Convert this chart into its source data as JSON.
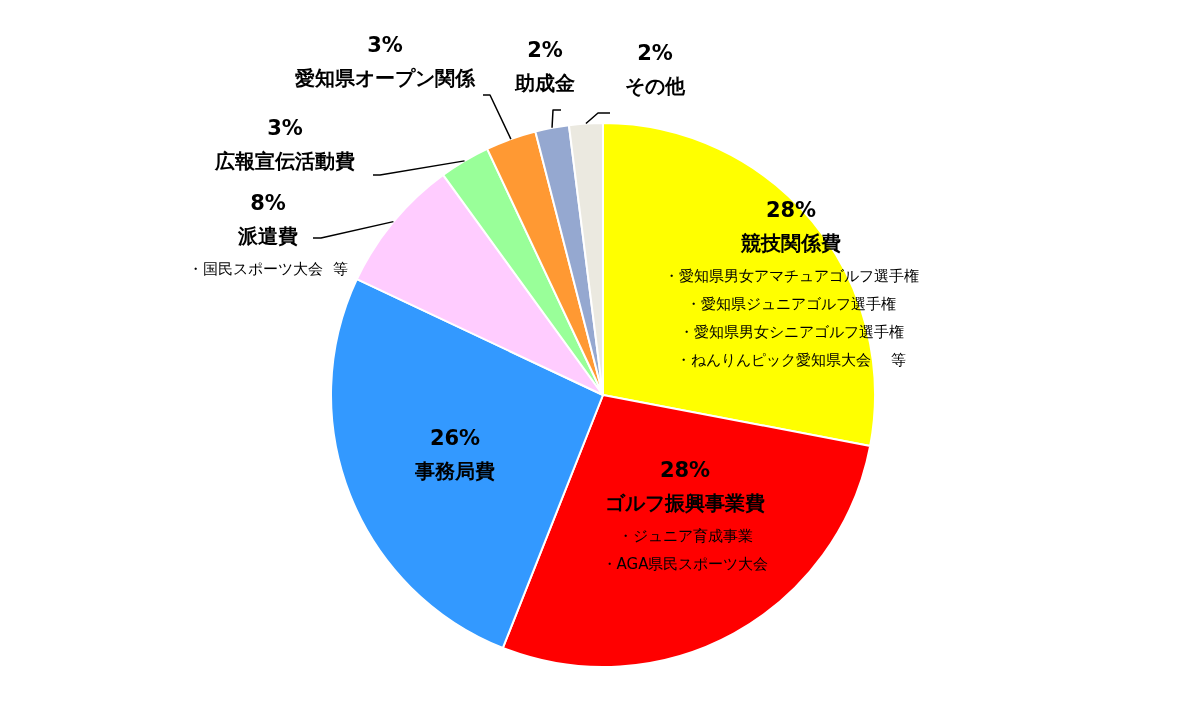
{
  "chart_data": {
    "type": "pie",
    "categories": [
      "競技関係費",
      "ゴルフ振興事業費",
      "事務局費",
      "派遣費",
      "広報宣伝活動費",
      "愛知県オープン関係",
      "助成金",
      "その他"
    ],
    "values": [
      28,
      28,
      26,
      8,
      3,
      3,
      2,
      2
    ],
    "value_labels": [
      "28%",
      "28%",
      "26%",
      "8%",
      "3%",
      "3%",
      "2%",
      "2%"
    ],
    "colors": [
      "#ffff00",
      "#ff0000",
      "#3399ff",
      "#ffccff",
      "#99ff99",
      "#ff9933",
      "#95a8d0",
      "#ebe9e0"
    ],
    "annotations": [
      {
        "text": "・愛知県男女アマチュアゴルフ選手権",
        "x": "競技関係費"
      },
      {
        "text": "・愛知県ジュニアゴルフ選手権",
        "x": "競技関係費"
      },
      {
        "text": "・愛知県男女シニアゴルフ選手権",
        "x": "競技関係費"
      },
      {
        "text": "・ねんりんピック愛知県大会　 等",
        "x": "競技関係費"
      },
      {
        "text": "・ジュニア育成事業",
        "x": "ゴルフ振興事業費"
      },
      {
        "text": "・AGA県民スポーツ大会",
        "x": "ゴルフ振興事業費"
      },
      {
        "text": "・国民スポーツ大会  等",
        "x": "派遣費"
      }
    ],
    "legend": false
  }
}
